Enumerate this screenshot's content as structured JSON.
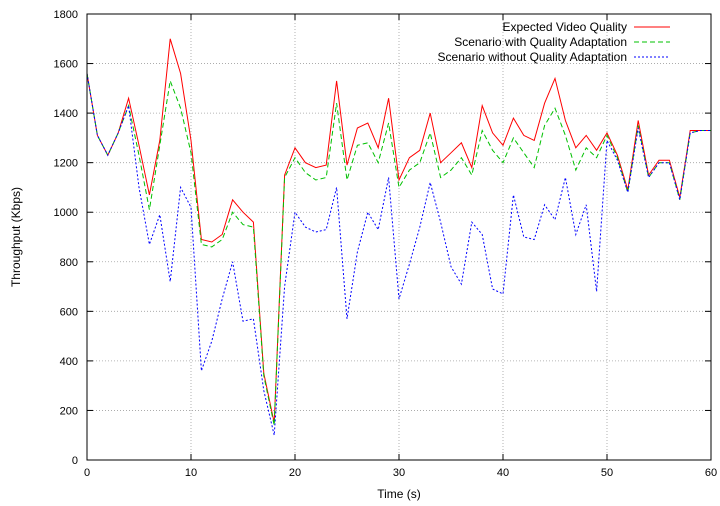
{
  "chart_data": {
    "type": "line",
    "xlabel": "Time (s)",
    "ylabel": "Throughput (Kbps)",
    "xlim": [
      0,
      60
    ],
    "ylim": [
      0,
      1800
    ],
    "xticks": [
      0,
      10,
      20,
      30,
      40,
      50,
      60
    ],
    "yticks": [
      0,
      200,
      400,
      600,
      800,
      1000,
      1200,
      1400,
      1600,
      1800
    ],
    "grid": true,
    "legend_position": "top-right",
    "series": [
      {
        "name": "Expected Video Quality",
        "color": "#ff0000",
        "dash": "solid",
        "x": [
          0,
          1,
          2,
          3,
          4,
          5,
          6,
          7,
          8,
          9,
          10,
          11,
          12,
          13,
          14,
          15,
          16,
          17,
          18,
          19,
          20,
          21,
          22,
          23,
          24,
          25,
          26,
          27,
          28,
          29,
          30,
          31,
          32,
          33,
          34,
          35,
          36,
          37,
          38,
          39,
          40,
          41,
          42,
          43,
          44,
          45,
          46,
          47,
          48,
          49,
          50,
          51,
          52,
          53,
          54,
          55,
          56,
          57,
          58,
          59,
          60
        ],
        "values": [
          1560,
          1310,
          1230,
          1320,
          1460,
          1270,
          1070,
          1290,
          1700,
          1560,
          1290,
          890,
          880,
          910,
          1050,
          1000,
          960,
          350,
          150,
          1150,
          1260,
          1200,
          1180,
          1190,
          1530,
          1190,
          1340,
          1360,
          1260,
          1460,
          1130,
          1220,
          1250,
          1400,
          1200,
          1240,
          1280,
          1180,
          1430,
          1320,
          1270,
          1380,
          1310,
          1290,
          1440,
          1540,
          1370,
          1260,
          1310,
          1250,
          1320,
          1230,
          1090,
          1370,
          1150,
          1210,
          1210,
          1060,
          1330,
          1330,
          1330
        ]
      },
      {
        "name": "Scenario with Quality Adaptation",
        "color": "#00c000",
        "dash": "dashed",
        "x": [
          0,
          1,
          2,
          3,
          4,
          5,
          6,
          7,
          8,
          9,
          10,
          11,
          12,
          13,
          14,
          15,
          16,
          17,
          18,
          19,
          20,
          21,
          22,
          23,
          24,
          25,
          26,
          27,
          28,
          29,
          30,
          31,
          32,
          33,
          34,
          35,
          36,
          37,
          38,
          39,
          40,
          41,
          42,
          43,
          44,
          45,
          46,
          47,
          48,
          49,
          50,
          51,
          52,
          53,
          54,
          55,
          56,
          57,
          58,
          59,
          60
        ],
        "values": [
          1560,
          1310,
          1230,
          1320,
          1430,
          1230,
          1010,
          1270,
          1530,
          1420,
          1240,
          870,
          860,
          890,
          1000,
          950,
          940,
          340,
          140,
          1140,
          1220,
          1160,
          1130,
          1140,
          1440,
          1130,
          1270,
          1280,
          1200,
          1360,
          1100,
          1170,
          1200,
          1320,
          1140,
          1170,
          1220,
          1150,
          1330,
          1250,
          1200,
          1300,
          1240,
          1180,
          1350,
          1420,
          1310,
          1170,
          1260,
          1220,
          1310,
          1220,
          1080,
          1350,
          1140,
          1200,
          1200,
          1050,
          1320,
          1330,
          1330
        ]
      },
      {
        "name": "Scenario without Quality Adaptation",
        "color": "#0000ff",
        "dash": "dotted",
        "x": [
          0,
          1,
          2,
          3,
          4,
          5,
          6,
          7,
          8,
          9,
          10,
          11,
          12,
          13,
          14,
          15,
          16,
          17,
          18,
          19,
          20,
          21,
          22,
          23,
          24,
          25,
          26,
          27,
          28,
          29,
          30,
          31,
          32,
          33,
          34,
          35,
          36,
          37,
          38,
          39,
          40,
          41,
          42,
          43,
          44,
          45,
          46,
          47,
          48,
          49,
          50,
          51,
          52,
          53,
          54,
          55,
          56,
          57,
          58,
          59,
          60
        ],
        "values": [
          1560,
          1310,
          1230,
          1320,
          1430,
          1100,
          870,
          990,
          720,
          1100,
          1020,
          360,
          480,
          650,
          800,
          560,
          570,
          280,
          100,
          700,
          1000,
          940,
          920,
          930,
          1100,
          570,
          840,
          1000,
          930,
          1140,
          650,
          790,
          940,
          1120,
          960,
          780,
          710,
          960,
          910,
          690,
          670,
          1070,
          900,
          890,
          1030,
          970,
          1140,
          910,
          1030,
          680,
          1290,
          1210,
          1080,
          1340,
          1140,
          1200,
          1200,
          1050,
          1320,
          1330,
          1330
        ]
      }
    ]
  }
}
